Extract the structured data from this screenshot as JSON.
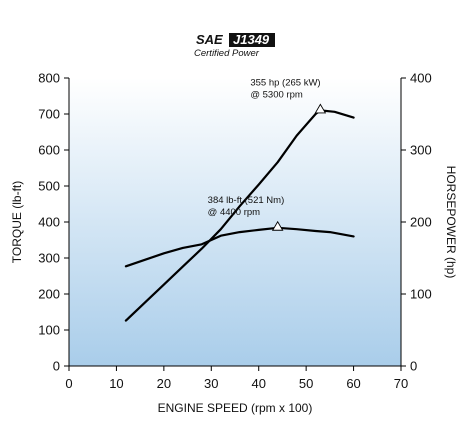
{
  "badge": {
    "sae": "SAE",
    "code": "J1349",
    "subtitle": "Certified Power"
  },
  "chart_data": {
    "type": "line",
    "xlabel": "ENGINE SPEED (rpm x 100)",
    "ylabel_left": "TORQUE (lb-ft)",
    "ylabel_right": "HORSEPOWER (hp)",
    "xlim": [
      0,
      70
    ],
    "ylim_left": [
      0,
      800
    ],
    "ylim_right": [
      0,
      400
    ],
    "x_ticks": [
      0,
      10,
      20,
      30,
      40,
      50,
      60,
      70
    ],
    "y_left_ticks": [
      0,
      100,
      200,
      300,
      400,
      500,
      600,
      700,
      800
    ],
    "y_right_ticks": [
      0,
      100,
      200,
      300,
      400
    ],
    "grid": false,
    "background": "vertical gradient, white at top to light blue at bottom",
    "series": [
      {
        "axis": "left",
        "x": [
          12,
          16,
          20,
          24,
          28,
          32,
          36,
          40,
          44,
          48,
          52,
          55,
          60
        ],
        "y": [
          277,
          295,
          313,
          328,
          338,
          362,
          372,
          378,
          384,
          380,
          375,
          372,
          360
        ]
      },
      {
        "axis": "right",
        "x": [
          12,
          16,
          20,
          24,
          28,
          32,
          36,
          40,
          44,
          48,
          52,
          53,
          56,
          60
        ],
        "y": [
          63,
          88,
          113,
          138,
          163,
          190,
          222,
          252,
          283,
          320,
          350,
          355,
          353,
          345
        ]
      }
    ],
    "annotations": [
      {
        "series": 1,
        "x": 53,
        "y": 355,
        "lines": [
          "355 hp (265 kW)",
          "@ 5300 rpm"
        ]
      },
      {
        "series": 0,
        "x": 44,
        "y": 384,
        "lines": [
          "384 lb-ft (521 Nm)",
          "@ 4400 rpm"
        ]
      }
    ]
  }
}
